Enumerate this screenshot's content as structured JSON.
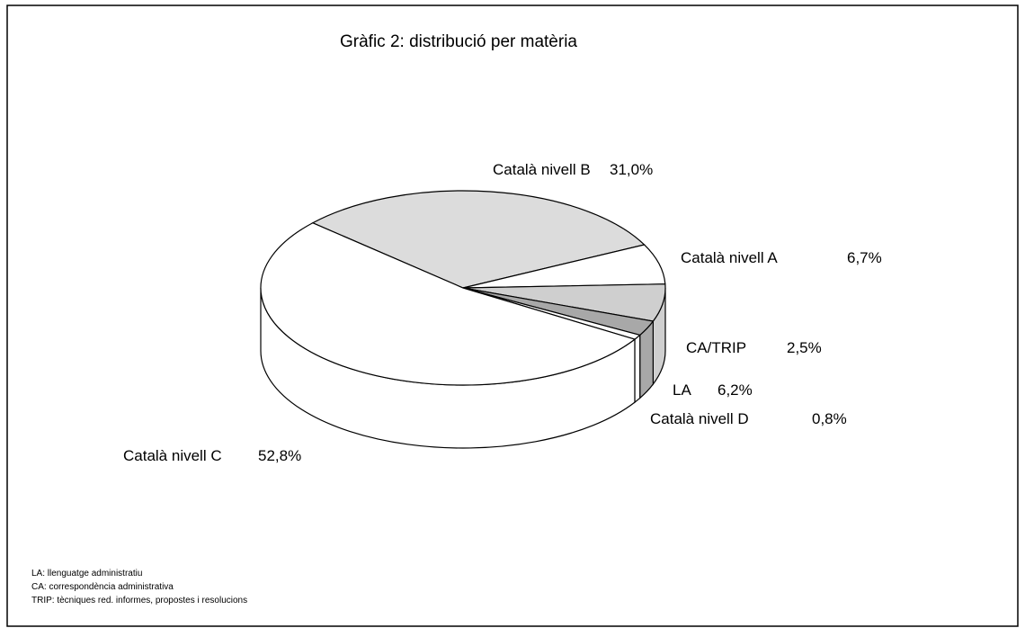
{
  "chart_data": {
    "type": "pie",
    "title": "Gràfic 2: distribució per matèria",
    "categories": [
      "Català nivell B",
      "Català nivell A",
      "LA",
      "CA/TRIP",
      "Català nivell D",
      "Català nivell C"
    ],
    "values": [
      31.0,
      6.7,
      6.2,
      2.5,
      0.8,
      52.8
    ],
    "value_labels": [
      "31,0%",
      "6,7%",
      "6,2%",
      "2,5%",
      "0,8%",
      "52,8%"
    ],
    "colors": [
      "#dcdcdc",
      "#ffffff",
      "#cfcfcf",
      "#a8a8a8",
      "#ffffff",
      "#ffffff"
    ],
    "notes": [
      "LA: llenguatge administratiu",
      "CA: correspondència administrativa",
      "TRIP: tècniques red. informes, propostes i resolucions"
    ]
  }
}
